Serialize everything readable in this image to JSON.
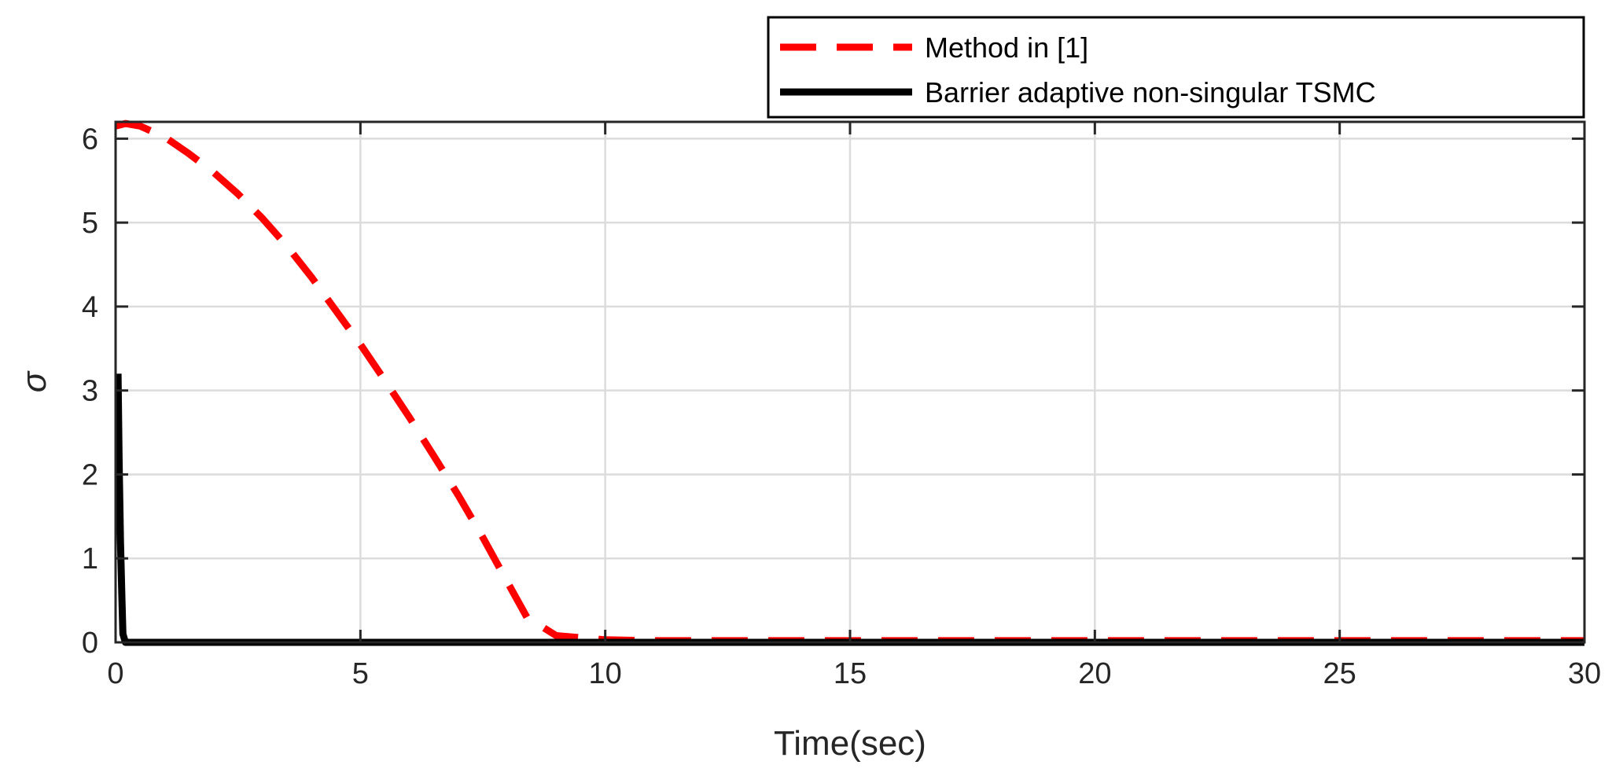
{
  "chart_data": {
    "type": "line",
    "xlabel": "Time(sec)",
    "ylabel": "σ",
    "xlim": [
      0,
      30
    ],
    "ylim": [
      0,
      6.2
    ],
    "xticks": [
      0,
      5,
      10,
      15,
      20,
      25,
      30
    ],
    "yticks": [
      0,
      1,
      2,
      3,
      4,
      5,
      6
    ],
    "grid": true,
    "legend_position": "top-right",
    "series": [
      {
        "name": "Method in [1]",
        "color": "#ff0000",
        "style": "dashed",
        "x": [
          0,
          0.2,
          0.5,
          1,
          1.5,
          2,
          2.5,
          3,
          3.5,
          4,
          4.5,
          5,
          5.5,
          6,
          6.5,
          7,
          7.5,
          8,
          8.4,
          9,
          10,
          11,
          12,
          14,
          16,
          18,
          20,
          22,
          24,
          26,
          28,
          30
        ],
        "y": [
          6.15,
          6.18,
          6.15,
          6.02,
          5.82,
          5.6,
          5.34,
          5.05,
          4.72,
          4.35,
          3.95,
          3.55,
          3.12,
          2.68,
          2.22,
          1.75,
          1.25,
          0.72,
          0.3,
          0.08,
          0.03,
          0.02,
          0.02,
          0.02,
          0.02,
          0.02,
          0.02,
          0.02,
          0.02,
          0.02,
          0.02,
          0.02
        ]
      },
      {
        "name": "Barrier adaptive non-singular TSMC",
        "color": "#000000",
        "style": "solid",
        "x": [
          0.05,
          0.07,
          0.1,
          0.13,
          0.15,
          0.2,
          0.3,
          1,
          5,
          10,
          15,
          20,
          25,
          30
        ],
        "y": [
          3.2,
          2.2,
          1.2,
          0.5,
          0.1,
          0,
          0,
          0,
          0,
          0,
          0,
          0,
          0,
          0
        ]
      }
    ]
  }
}
